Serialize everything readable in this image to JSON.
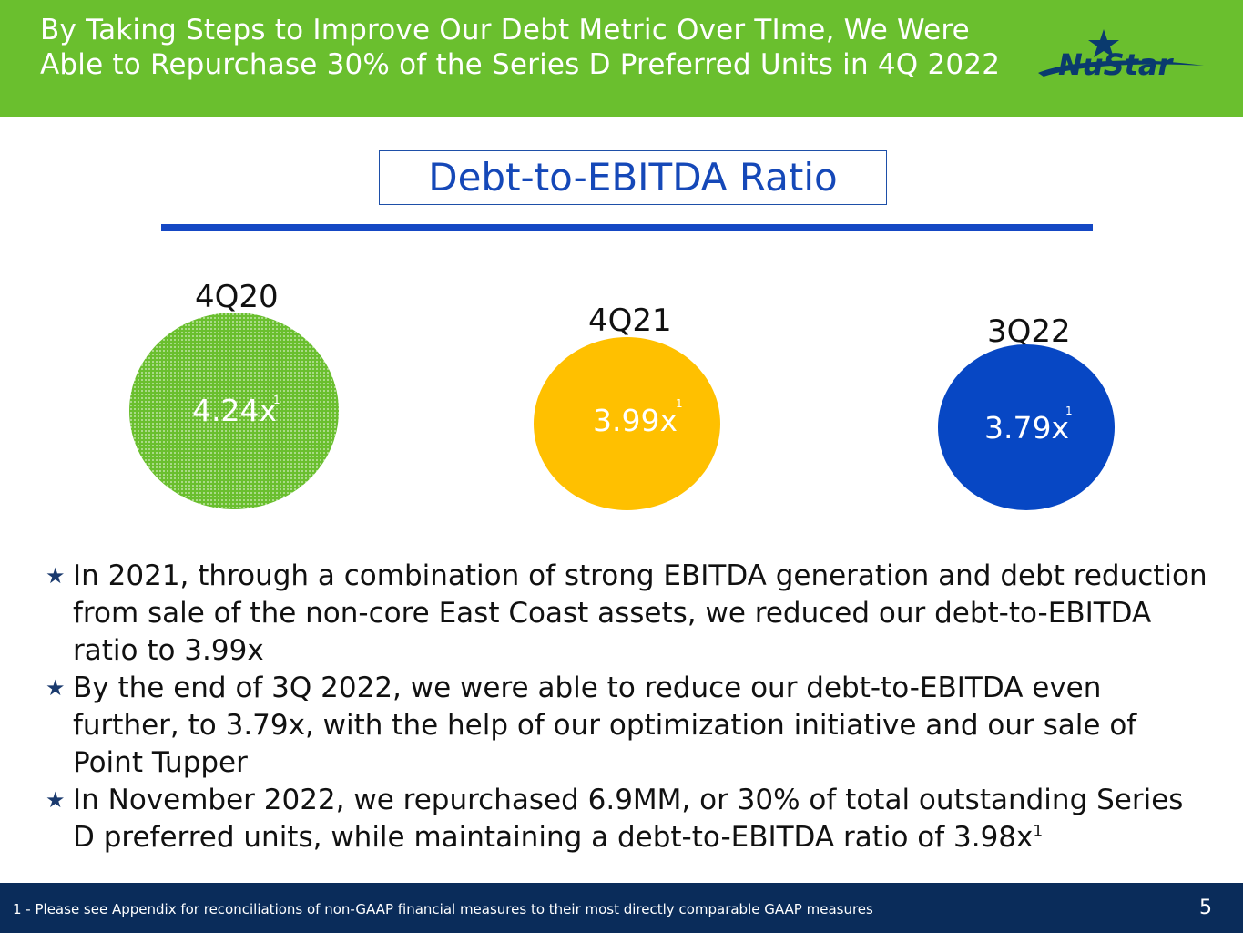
{
  "header": {
    "title": "By Taking Steps to Improve Our Debt Metric Over TIme, We Were Able to Repurchase 30% of the Series D Preferred Units in 4Q 2022",
    "logo_text": "NuStar"
  },
  "section": {
    "title": "Debt-to-EBITDA Ratio"
  },
  "metrics": [
    {
      "period": "4Q20",
      "value": "4.24x",
      "footnote_ref": "1",
      "color": "#6abf2e"
    },
    {
      "period": "4Q21",
      "value": "3.99x",
      "footnote_ref": "1",
      "color": "#ffc000"
    },
    {
      "period": "3Q22",
      "value": "3.79x",
      "footnote_ref": "1",
      "color": "#0747c4"
    }
  ],
  "bullets": [
    {
      "text": "In 2021, through a combination of strong EBITDA generation and debt reduction from sale of the non-core East Coast assets, we reduced our debt-to-EBITDA ratio to 3.99x"
    },
    {
      "text": "By the end of 3Q 2022, we were able to reduce our debt-to-EBITDA even further, to 3.79x, with the help of our optimization initiative and our sale of Point Tupper"
    },
    {
      "text": "In November 2022, we repurchased 6.9MM, or 30% of total outstanding Series D preferred units, while maintaining a debt-to-EBITDA ratio of 3.98x",
      "sup": "1"
    }
  ],
  "bullet_icon": "star-icon",
  "footer": {
    "footnote": "1 - Please see Appendix for reconciliations of non-GAAP financial measures to their most directly comparable GAAP measures",
    "page_number": "5"
  },
  "colors": {
    "header_green": "#6abf2e",
    "title_blue": "#1548b8",
    "footer_navy": "#0a2c5a"
  }
}
